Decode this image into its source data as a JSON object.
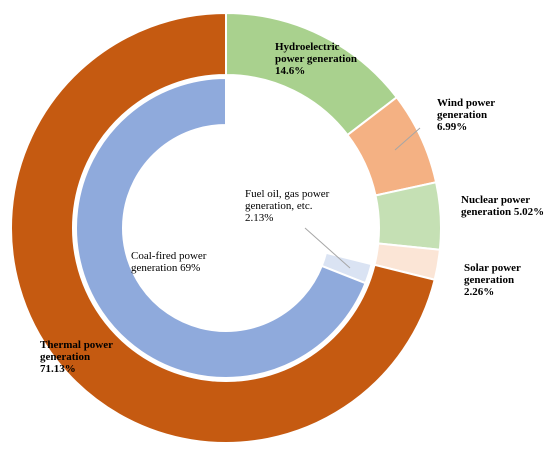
{
  "chart_data": {
    "type": "pie",
    "variant": "nested-donut",
    "title": "",
    "outer_ring": {
      "slices": [
        {
          "name": "Hydroelectric power generation",
          "label_lines": [
            "Hydroelectric",
            "power generation"
          ],
          "value_text": "14.6%",
          "value": 14.6,
          "color": "#a9d18e"
        },
        {
          "name": "Wind power generation",
          "label_lines": [
            "Wind power",
            "generation"
          ],
          "value_text": "6.99%",
          "value": 6.99,
          "color": "#f4b183"
        },
        {
          "name": "Nuclear power generation",
          "label_lines": [
            "Nuclear power",
            "generation 5.02%"
          ],
          "value_text": "",
          "value": 5.02,
          "color": "#c5e0b4"
        },
        {
          "name": "Solar power generation",
          "label_lines": [
            "Solar power",
            "generation"
          ],
          "value_text": "2.26%",
          "value": 2.26,
          "color": "#fbe5d6"
        },
        {
          "name": "Thermal power generation",
          "label_lines": [
            "Thermal power",
            "generation"
          ],
          "value_text": "71.13%",
          "value": 71.13,
          "color": "#c55a11"
        }
      ]
    },
    "inner_ring": {
      "slices": [
        {
          "name": "Blank",
          "label_lines": [],
          "value_text": "",
          "value": 28.87,
          "color": "#ffffff"
        },
        {
          "name": "Fuel oil, gas power generation, etc.",
          "label_lines": [
            "Fuel oil, gas power",
            "generation, etc."
          ],
          "value_text": "2.13%",
          "value": 2.13,
          "color": "#dae3f3"
        },
        {
          "name": "Coal-fired power generation",
          "label_lines": [
            "Coal-fired power",
            "generation 69%"
          ],
          "value_text": "",
          "value": 69.0,
          "color": "#8faadc"
        }
      ]
    }
  }
}
